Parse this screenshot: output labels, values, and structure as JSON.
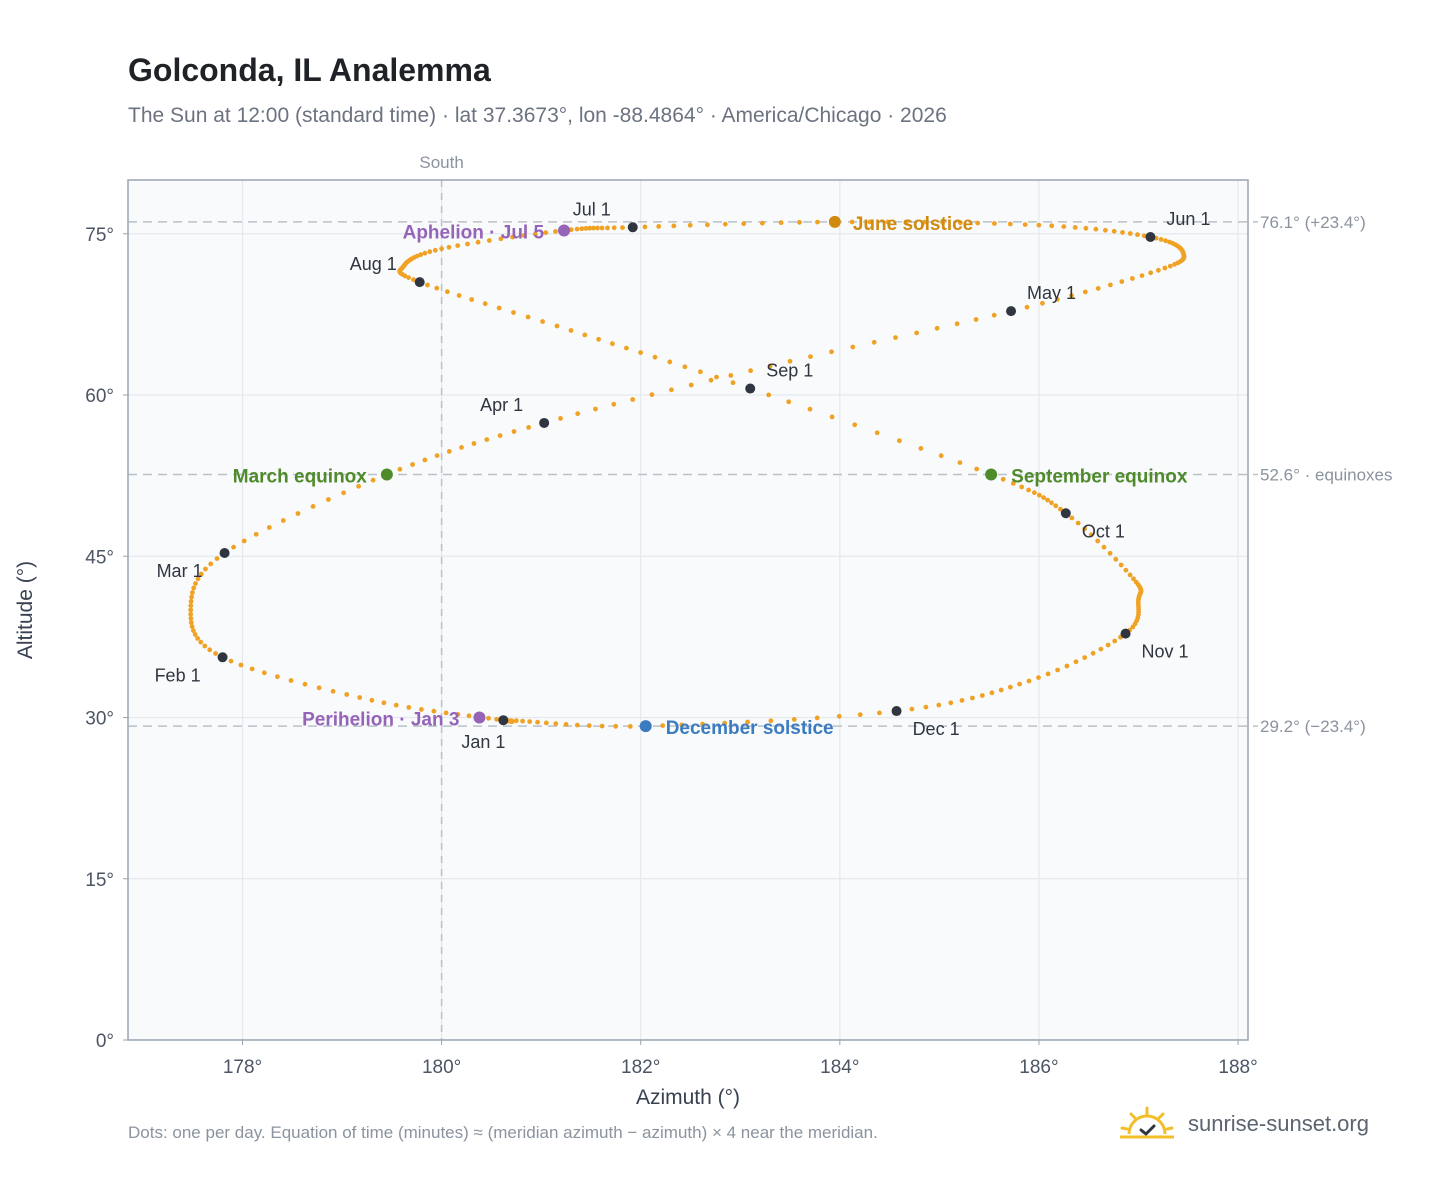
{
  "header": {
    "title": "Golconda, IL Analemma",
    "subtitle": "The Sun at 12:00 (standard time) · lat 37.3673°, lon -88.4864° · America/Chicago · 2026"
  },
  "footer": {
    "note": "Dots: one per day. Equation of time (minutes) ≈ (meridian azimuth − azimuth) × 4 near the meridian.",
    "brand": "sunrise-sunset.org"
  },
  "colors": {
    "path": "#f0a225",
    "month_marker": "#2f3640",
    "solstice_june": "#d08a0f",
    "solstice_december": "#3b7bc0",
    "equinox": "#4f8a2b",
    "apsis": "#9563b8",
    "grid": "#e5e9ee",
    "plot_bg": "#f8fafc",
    "ref_line": "#b9c1ca"
  },
  "chart_data": {
    "type": "scatter",
    "xlabel": "Azimuth (°)",
    "ylabel": "Altitude (°)",
    "xlim": [
      176.85,
      188.1
    ],
    "ylim": [
      0,
      80
    ],
    "x_ticks": [
      178,
      180,
      182,
      184,
      186,
      188
    ],
    "x_tick_labels": [
      "178°",
      "180°",
      "182°",
      "184°",
      "186°",
      "188°"
    ],
    "y_ticks": [
      0,
      15,
      30,
      45,
      60,
      75
    ],
    "y_tick_labels": [
      "0°",
      "15°",
      "30°",
      "45°",
      "60°",
      "75°"
    ],
    "grid": true,
    "series": [
      {
        "description": "daily sun position, one dot per day",
        "anchors": [
          {
            "date": "Jan 1",
            "az": 180.62,
            "alt": 29.75
          },
          {
            "date": "Jan 16",
            "az": 179.3,
            "alt": 31.6
          },
          {
            "date": "Feb 1",
            "az": 177.8,
            "alt": 35.6
          },
          {
            "date": "Feb 12",
            "az": 177.48,
            "alt": 40.0
          },
          {
            "date": "Mar 1",
            "az": 177.82,
            "alt": 45.3
          },
          {
            "date": "Mar 20",
            "az": 179.45,
            "alt": 52.6
          },
          {
            "date": "Apr 1",
            "az": 181.03,
            "alt": 57.4
          },
          {
            "date": "Apr 16",
            "az": 183.3,
            "alt": 62.7
          },
          {
            "date": "May 1",
            "az": 185.72,
            "alt": 67.8
          },
          {
            "date": "May 16",
            "az": 187.2,
            "alt": 71.6
          },
          {
            "date": "May 25",
            "az": 187.45,
            "alt": 73.2
          },
          {
            "date": "Jun 1",
            "az": 187.12,
            "alt": 74.7
          },
          {
            "date": "Jun 10",
            "az": 186.0,
            "alt": 75.8
          },
          {
            "date": "Jun 21",
            "az": 183.95,
            "alt": 76.1
          },
          {
            "date": "Jul 1",
            "az": 181.92,
            "alt": 75.6
          },
          {
            "date": "Jul 5",
            "az": 181.23,
            "alt": 75.3
          },
          {
            "date": "Jul 16",
            "az": 180.0,
            "alt": 73.6
          },
          {
            "date": "Jul 26",
            "az": 179.62,
            "alt": 72.0
          },
          {
            "date": "Aug 1",
            "az": 179.78,
            "alt": 70.5
          },
          {
            "date": "Aug 16",
            "az": 181.3,
            "alt": 66.0
          },
          {
            "date": "Sep 1",
            "az": 183.1,
            "alt": 60.6
          },
          {
            "date": "Sep 22",
            "az": 185.52,
            "alt": 52.6
          },
          {
            "date": "Oct 1",
            "az": 186.27,
            "alt": 49.0
          },
          {
            "date": "Oct 16",
            "az": 186.95,
            "alt": 42.9
          },
          {
            "date": "Oct 22",
            "az": 187.0,
            "alt": 41.0
          },
          {
            "date": "Nov 1",
            "az": 186.87,
            "alt": 37.8
          },
          {
            "date": "Nov 16",
            "az": 185.9,
            "alt": 33.4
          },
          {
            "date": "Dec 1",
            "az": 184.57,
            "alt": 30.6
          },
          {
            "date": "Dec 21",
            "az": 182.05,
            "alt": 29.2
          },
          {
            "date": "Dec 31",
            "az": 180.75,
            "alt": 29.7
          }
        ]
      }
    ],
    "month_markers": [
      {
        "label": "Jan 1",
        "az": 180.62,
        "alt": 29.75
      },
      {
        "label": "Feb 1",
        "az": 177.8,
        "alt": 35.6
      },
      {
        "label": "Mar 1",
        "az": 177.82,
        "alt": 45.3
      },
      {
        "label": "Apr 1",
        "az": 181.03,
        "alt": 57.4
      },
      {
        "label": "May 1",
        "az": 185.72,
        "alt": 67.8
      },
      {
        "label": "Jun 1",
        "az": 187.12,
        "alt": 74.7
      },
      {
        "label": "Jul 1",
        "az": 181.92,
        "alt": 75.6
      },
      {
        "label": "Aug 1",
        "az": 179.78,
        "alt": 70.5
      },
      {
        "label": "Sep 1",
        "az": 183.1,
        "alt": 60.6
      },
      {
        "label": "Oct 1",
        "az": 186.27,
        "alt": 49.0
      },
      {
        "label": "Nov 1",
        "az": 186.87,
        "alt": 37.8
      },
      {
        "label": "Dec 1",
        "az": 184.57,
        "alt": 30.6
      }
    ],
    "events": [
      {
        "label": "June solstice",
        "az": 183.95,
        "alt": 76.1,
        "kind": "solstice_june"
      },
      {
        "label": "December solstice",
        "az": 182.05,
        "alt": 29.2,
        "kind": "solstice_december"
      },
      {
        "label": "March equinox",
        "az": 179.45,
        "alt": 52.6,
        "kind": "equinox"
      },
      {
        "label": "September equinox",
        "az": 185.52,
        "alt": 52.6,
        "kind": "equinox"
      },
      {
        "label": "Aphelion · Jul 5",
        "az": 181.23,
        "alt": 75.3,
        "kind": "apsis"
      },
      {
        "label": "Perihelion · Jan 3",
        "az": 180.38,
        "alt": 30.0,
        "kind": "apsis"
      }
    ],
    "reference_lines": [
      {
        "alt": 76.1,
        "label": "76.1° (+23.4°)"
      },
      {
        "alt": 52.6,
        "label": "52.6° · equinoxes"
      },
      {
        "alt": 29.2,
        "label": "29.2° (−23.4°)"
      }
    ],
    "meridian": {
      "az": 180,
      "label": "South"
    }
  }
}
